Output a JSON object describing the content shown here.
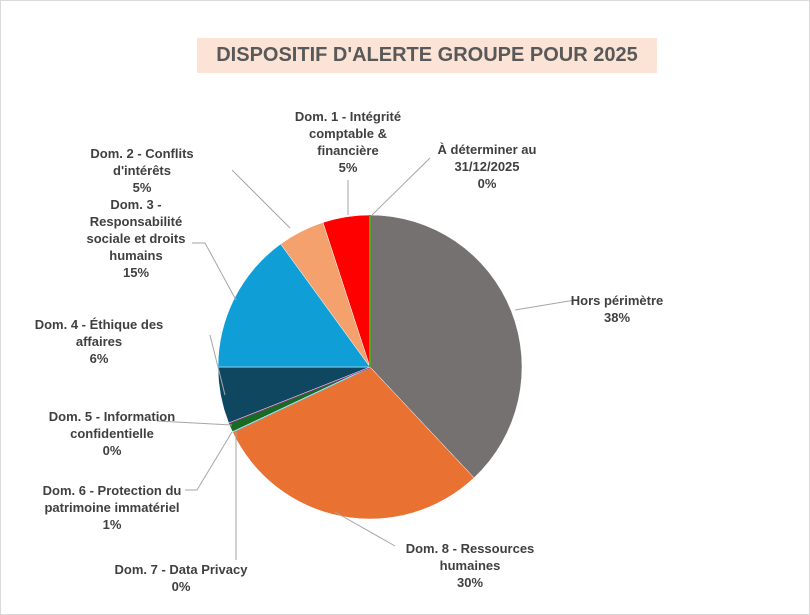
{
  "chart_data": {
    "type": "pie",
    "title": "DISPOSITIF D'ALERTE GROUPE POUR 2025",
    "categories": [
      "Hors périmètre",
      "Dom. 8 - Ressources humaines",
      "Dom. 7 - Data Privacy",
      "Dom. 6 - Protection du patrimoine immatériel",
      "Dom. 5 - Information confidentielle",
      "Dom. 4 - Éthique des affaires",
      "Dom. 3 - Responsabilité sociale et droits humains",
      "Dom. 2 - Conflits d'intérêts",
      "Dom. 1 - Intégrité comptable & financière",
      "À déterminer au 31/12/2025"
    ],
    "values": [
      38,
      30,
      0,
      1,
      0,
      6,
      15,
      5,
      5,
      0
    ],
    "value_labels": [
      "38%",
      "30%",
      "0%",
      "1%",
      "0%",
      "6%",
      "15%",
      "5%",
      "5%",
      "0%"
    ],
    "colors": [
      "#767171",
      "#e97132",
      "#61cbf3",
      "#196b24",
      "#a02b93",
      "#0f4761",
      "#0f9ed5",
      "#f4a16e",
      "#ff0000",
      "#4ea72e"
    ]
  }
}
